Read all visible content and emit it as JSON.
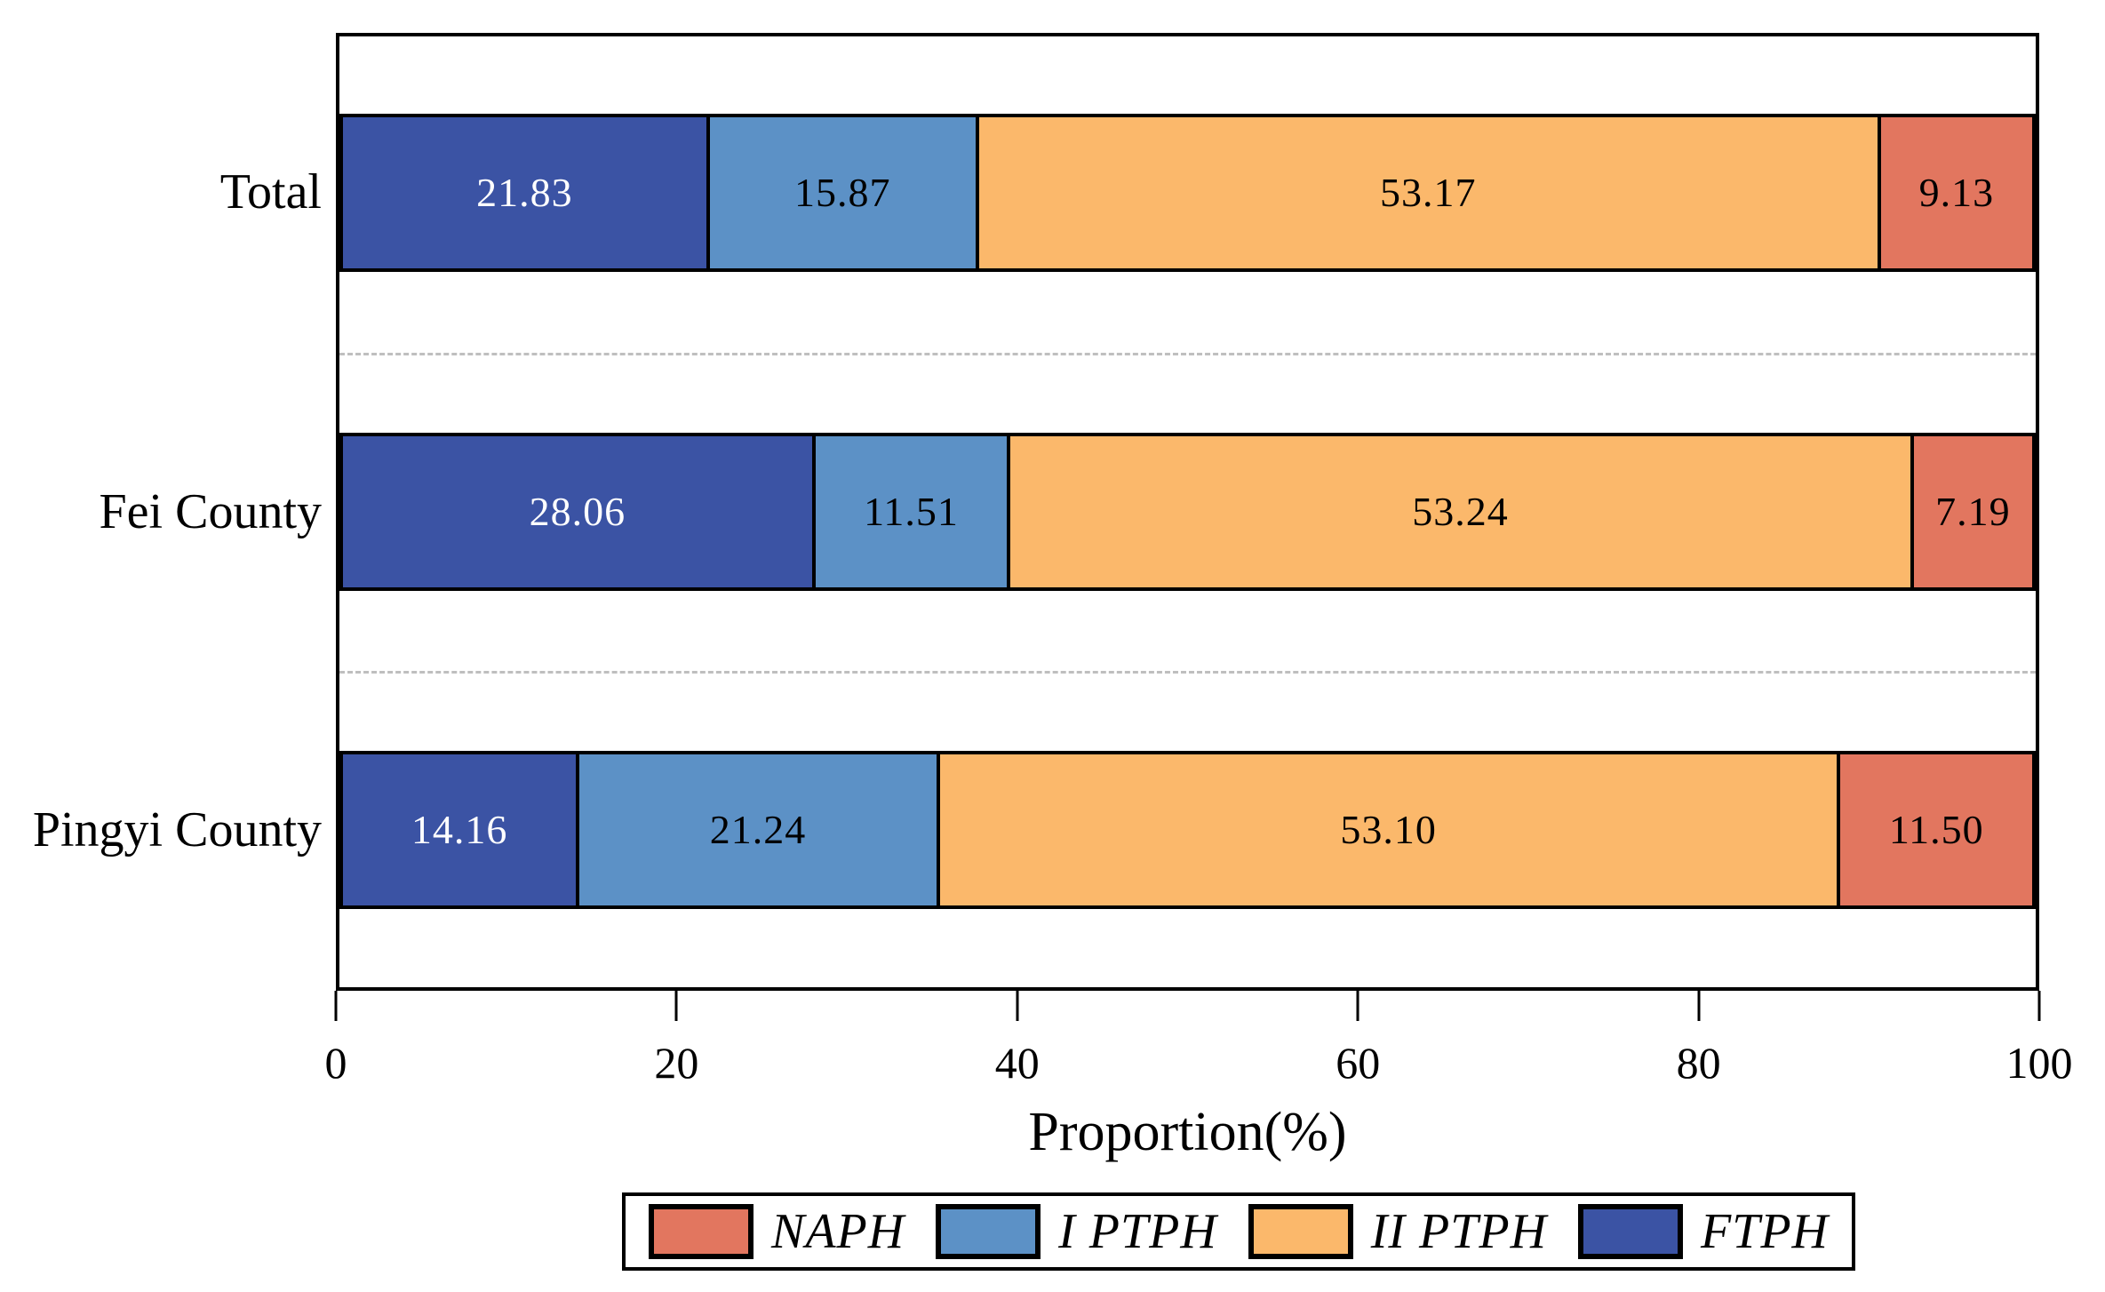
{
  "chart_data": {
    "type": "bar",
    "orientation": "horizontal",
    "stacked": true,
    "title": "",
    "xlabel": "Proportion(%)",
    "xlim": [
      0,
      100
    ],
    "x_ticks": [
      0,
      20,
      40,
      60,
      80,
      100
    ],
    "grid": "dashed horizontal separators between bars",
    "categories": [
      "Total",
      "Fei County",
      "Pingyi County"
    ],
    "series": [
      {
        "name": "FTPH",
        "color": "#3B53A4",
        "text_color": "#FFFFFF",
        "values": [
          21.83,
          28.06,
          14.16
        ],
        "value_labels": [
          "21.83",
          "28.06",
          "14.16"
        ]
      },
      {
        "name": "I PTPH",
        "color": "#5C91C6",
        "text_color": "#000000",
        "values": [
          15.87,
          11.51,
          21.24
        ],
        "value_labels": [
          "15.87",
          "11.51",
          "21.24"
        ]
      },
      {
        "name": "II PTPH",
        "color": "#FBB86B",
        "text_color": "#000000",
        "values": [
          53.17,
          53.24,
          53.1
        ],
        "value_labels": [
          "53.17",
          "53.24",
          "53.10"
        ]
      },
      {
        "name": "NAPH",
        "color": "#E2765F",
        "text_color": "#000000",
        "values": [
          9.13,
          7.19,
          11.5
        ],
        "value_labels": [
          "9.13",
          "7.19",
          "11.50"
        ]
      }
    ],
    "legend": {
      "position": "bottom",
      "entries": [
        "NAPH",
        "I PTPH",
        "II PTPH",
        "FTPH"
      ]
    },
    "colors": {
      "plot_border": "#000000",
      "segment_border": "#000000",
      "separator_line": "#BFBFBF",
      "background": "#FFFFFF"
    }
  }
}
